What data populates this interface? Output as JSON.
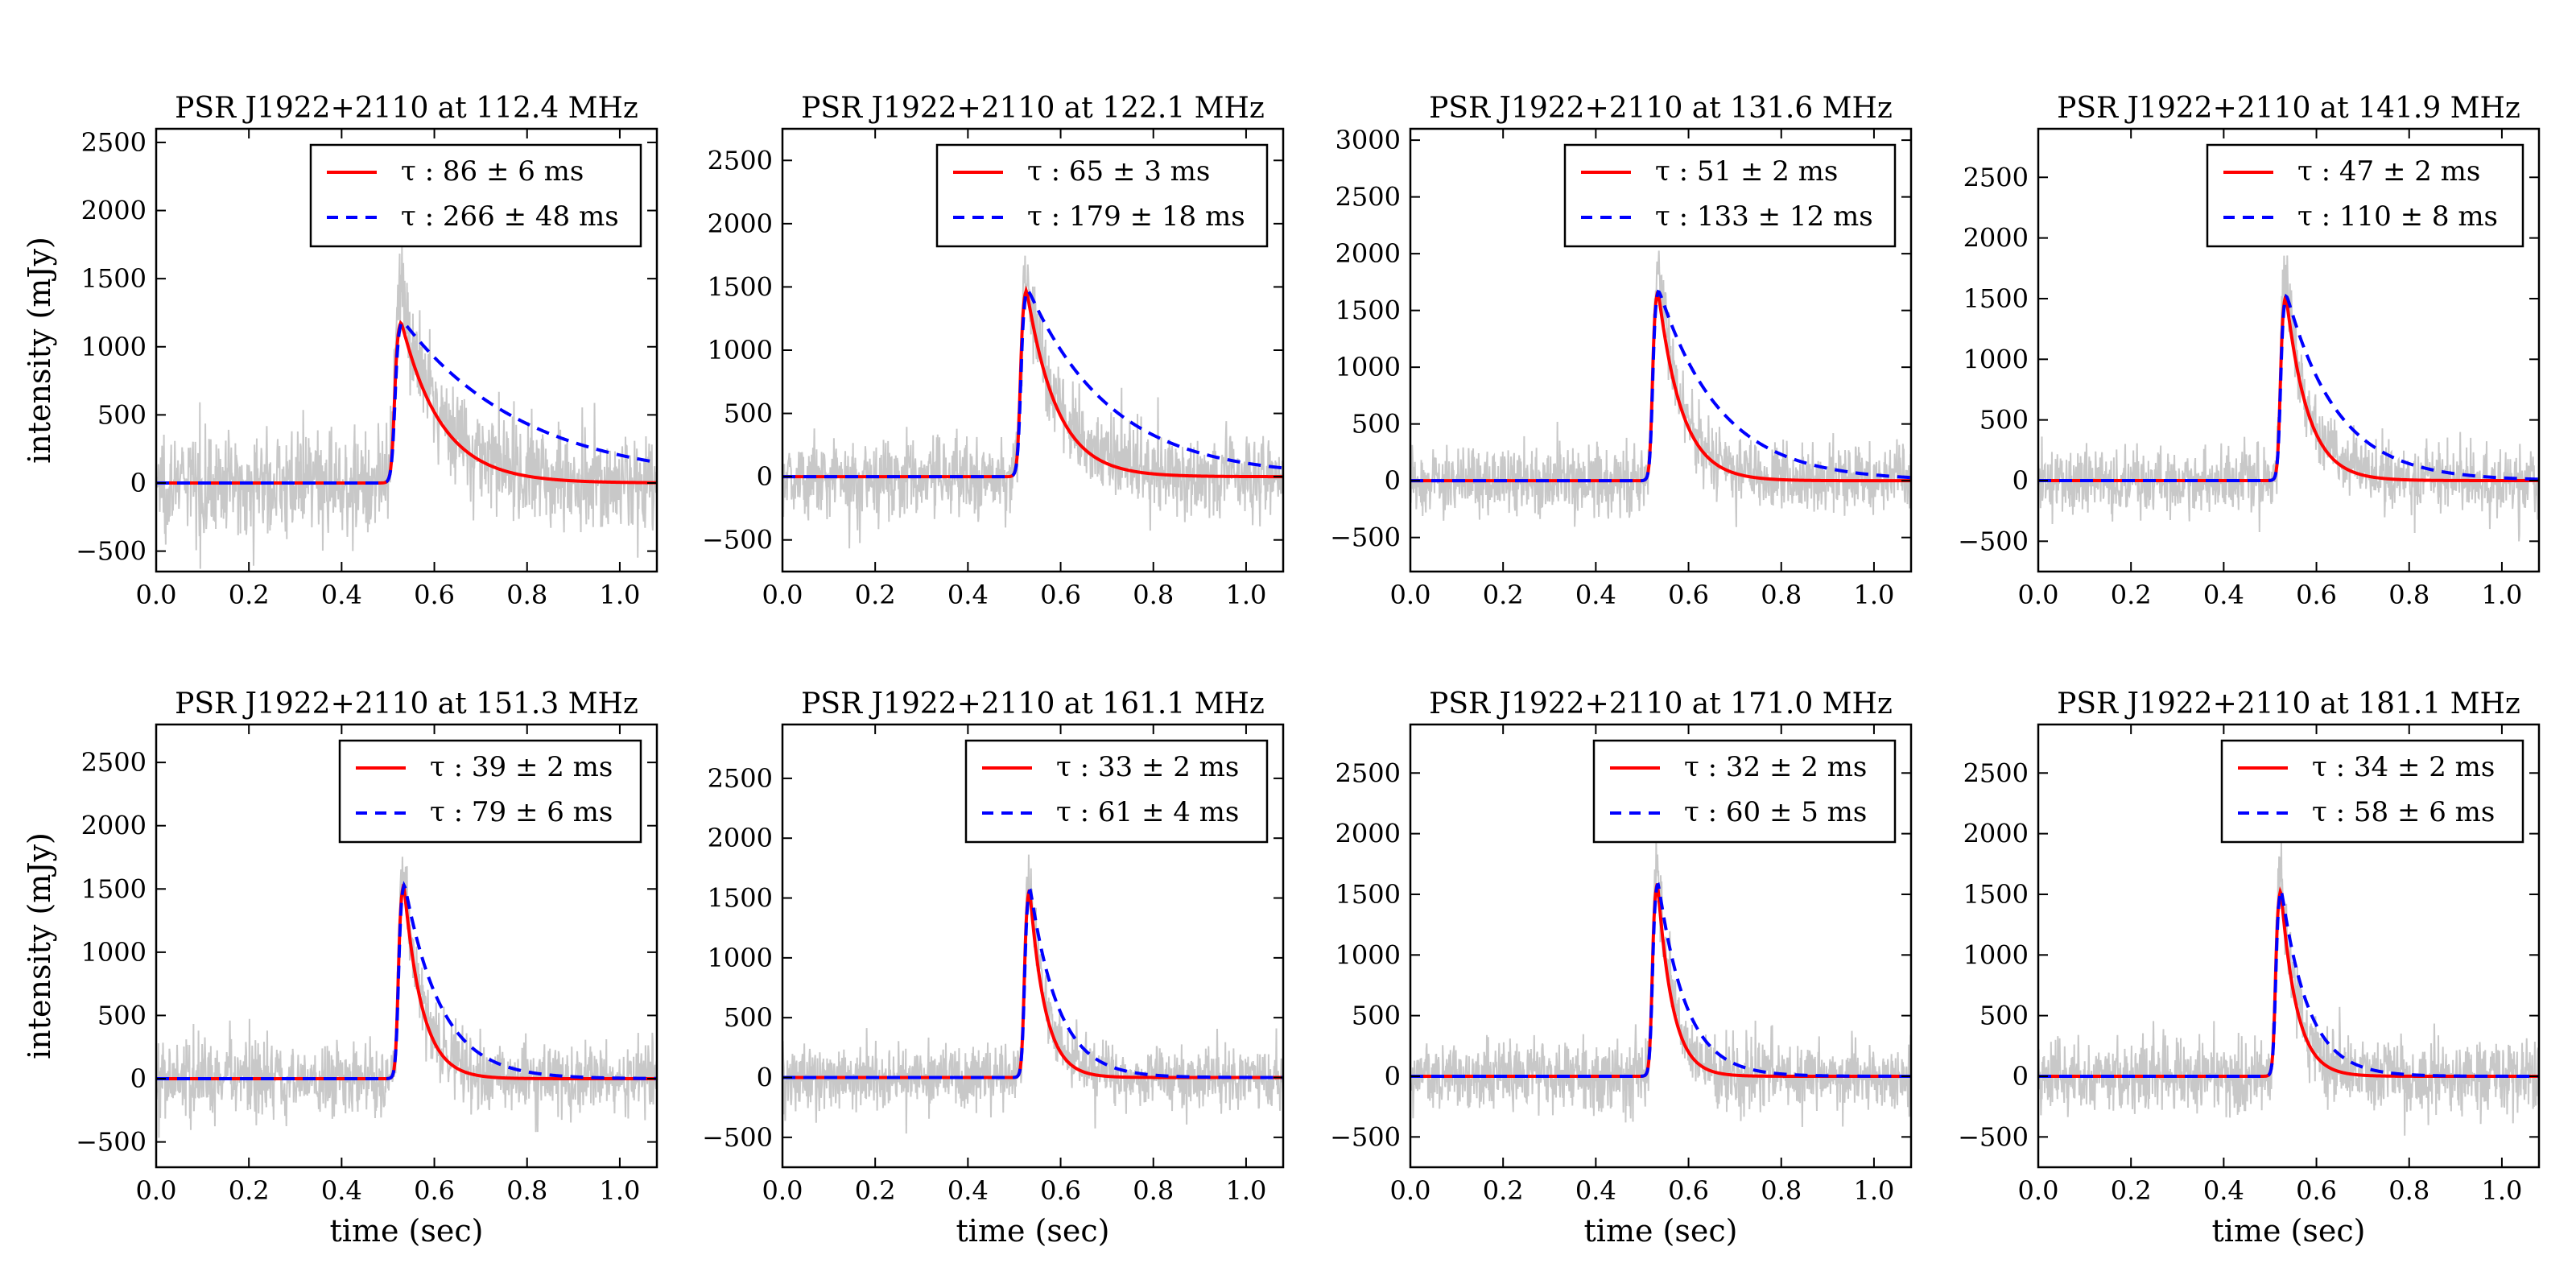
{
  "figure": {
    "ylabel": "intensity (mJy)",
    "xlabel": "time (sec)"
  },
  "legend_labels": {
    "tau_symbol": "τ",
    "separator": " : ",
    "pm": " ± ",
    "unit": " ms"
  },
  "colors": {
    "fit_solid": "#ff0000",
    "fit_dashed": "#0000ff",
    "data": "#c8c8c8"
  },
  "chart_data": [
    {
      "type": "line",
      "title": "PSR J1922+2110 at 112.4 MHz",
      "xlim": [
        0,
        1.08
      ],
      "ylim": [
        -650,
        2600
      ],
      "xticks": [
        0.0,
        0.2,
        0.4,
        0.6,
        0.8,
        1.0
      ],
      "yticks": [
        -500,
        0,
        500,
        1000,
        1500,
        2000,
        2500
      ],
      "t0": 0.5,
      "peak": 1200,
      "noise": 180,
      "data_peak": 1600,
      "series": [
        {
          "name": "fit_1",
          "style": "solid",
          "tau": 86,
          "err": 6,
          "rise": 0.028
        },
        {
          "name": "fit_2",
          "style": "dashed",
          "tau": 266,
          "err": 48,
          "rise": 0.03
        }
      ]
    },
    {
      "type": "line",
      "title": "PSR J1922+2110 at 122.1 MHz",
      "xlim": [
        0,
        1.08
      ],
      "ylim": [
        -750,
        2750
      ],
      "xticks": [
        0.0,
        0.2,
        0.4,
        0.6,
        0.8,
        1.0
      ],
      "yticks": [
        -500,
        0,
        500,
        1000,
        1500,
        2000,
        2500
      ],
      "t0": 0.5,
      "peak": 1500,
      "noise": 160,
      "data_peak": 1700,
      "series": [
        {
          "name": "fit_1",
          "style": "solid",
          "tau": 65,
          "err": 3,
          "rise": 0.026
        },
        {
          "name": "fit_2",
          "style": "dashed",
          "tau": 179,
          "err": 18,
          "rise": 0.028
        }
      ]
    },
    {
      "type": "line",
      "title": "PSR J1922+2110 at 131.6 MHz",
      "xlim": [
        0,
        1.08
      ],
      "ylim": [
        -800,
        3100
      ],
      "xticks": [
        0.0,
        0.2,
        0.4,
        0.6,
        0.8,
        1.0
      ],
      "yticks": [
        -500,
        0,
        500,
        1000,
        1500,
        2000,
        2500,
        3000
      ],
      "t0": 0.51,
      "peak": 1700,
      "noise": 150,
      "data_peak": 2000,
      "series": [
        {
          "name": "fit_1",
          "style": "solid",
          "tau": 51,
          "err": 2,
          "rise": 0.024
        },
        {
          "name": "fit_2",
          "style": "dashed",
          "tau": 133,
          "err": 12,
          "rise": 0.025
        }
      ]
    },
    {
      "type": "line",
      "title": "PSR J1922+2110 at 141.9 MHz",
      "xlim": [
        0,
        1.08
      ],
      "ylim": [
        -750,
        2900
      ],
      "xticks": [
        0.0,
        0.2,
        0.4,
        0.6,
        0.8,
        1.0
      ],
      "yticks": [
        -500,
        0,
        500,
        1000,
        1500,
        2000,
        2500
      ],
      "t0": 0.51,
      "peak": 1550,
      "noise": 140,
      "data_peak": 1800,
      "series": [
        {
          "name": "fit_1",
          "style": "solid",
          "tau": 47,
          "err": 2,
          "rise": 0.024
        },
        {
          "name": "fit_2",
          "style": "dashed",
          "tau": 110,
          "err": 8,
          "rise": 0.025
        }
      ]
    },
    {
      "type": "line",
      "title": "PSR J1922+2110 at 151.3 MHz",
      "xlim": [
        0,
        1.08
      ],
      "ylim": [
        -700,
        2800
      ],
      "xticks": [
        0.0,
        0.2,
        0.4,
        0.6,
        0.8,
        1.0
      ],
      "yticks": [
        -500,
        0,
        500,
        1000,
        1500,
        2000,
        2500
      ],
      "t0": 0.51,
      "peak": 1560,
      "noise": 140,
      "data_peak": 1750,
      "series": [
        {
          "name": "fit_1",
          "style": "solid",
          "tau": 39,
          "err": 2,
          "rise": 0.024
        },
        {
          "name": "fit_2",
          "style": "dashed",
          "tau": 79,
          "err": 6,
          "rise": 0.025
        }
      ]
    },
    {
      "type": "line",
      "title": "PSR J1922+2110 at 161.1 MHz",
      "xlim": [
        0,
        1.08
      ],
      "ylim": [
        -750,
        2950
      ],
      "xticks": [
        0.0,
        0.2,
        0.4,
        0.6,
        0.8,
        1.0
      ],
      "yticks": [
        -500,
        0,
        500,
        1000,
        1500,
        2000,
        2500
      ],
      "t0": 0.51,
      "peak": 1600,
      "noise": 130,
      "data_peak": 1850,
      "series": [
        {
          "name": "fit_1",
          "style": "solid",
          "tau": 33,
          "err": 2,
          "rise": 0.023
        },
        {
          "name": "fit_2",
          "style": "dashed",
          "tau": 61,
          "err": 4,
          "rise": 0.024
        }
      ]
    },
    {
      "type": "line",
      "title": "PSR J1922+2110 at 171.0 MHz",
      "xlim": [
        0,
        1.08
      ],
      "ylim": [
        -750,
        2900
      ],
      "xticks": [
        0.0,
        0.2,
        0.4,
        0.6,
        0.8,
        1.0
      ],
      "yticks": [
        -500,
        0,
        500,
        1000,
        1500,
        2000,
        2500
      ],
      "t0": 0.51,
      "peak": 1620,
      "noise": 140,
      "data_peak": 1850,
      "series": [
        {
          "name": "fit_1",
          "style": "solid",
          "tau": 32,
          "err": 2,
          "rise": 0.023
        },
        {
          "name": "fit_2",
          "style": "dashed",
          "tau": 60,
          "err": 5,
          "rise": 0.024
        }
      ]
    },
    {
      "type": "line",
      "title": "PSR J1922+2110 at 181.1 MHz",
      "xlim": [
        0,
        1.08
      ],
      "ylim": [
        -750,
        2900
      ],
      "xticks": [
        0.0,
        0.2,
        0.4,
        0.6,
        0.8,
        1.0
      ],
      "yticks": [
        -500,
        0,
        500,
        1000,
        1500,
        2000,
        2500
      ],
      "t0": 0.5,
      "peak": 1560,
      "noise": 150,
      "data_peak": 1800,
      "series": [
        {
          "name": "fit_1",
          "style": "solid",
          "tau": 34,
          "err": 2,
          "rise": 0.023
        },
        {
          "name": "fit_2",
          "style": "dashed",
          "tau": 58,
          "err": 6,
          "rise": 0.024
        }
      ]
    }
  ]
}
